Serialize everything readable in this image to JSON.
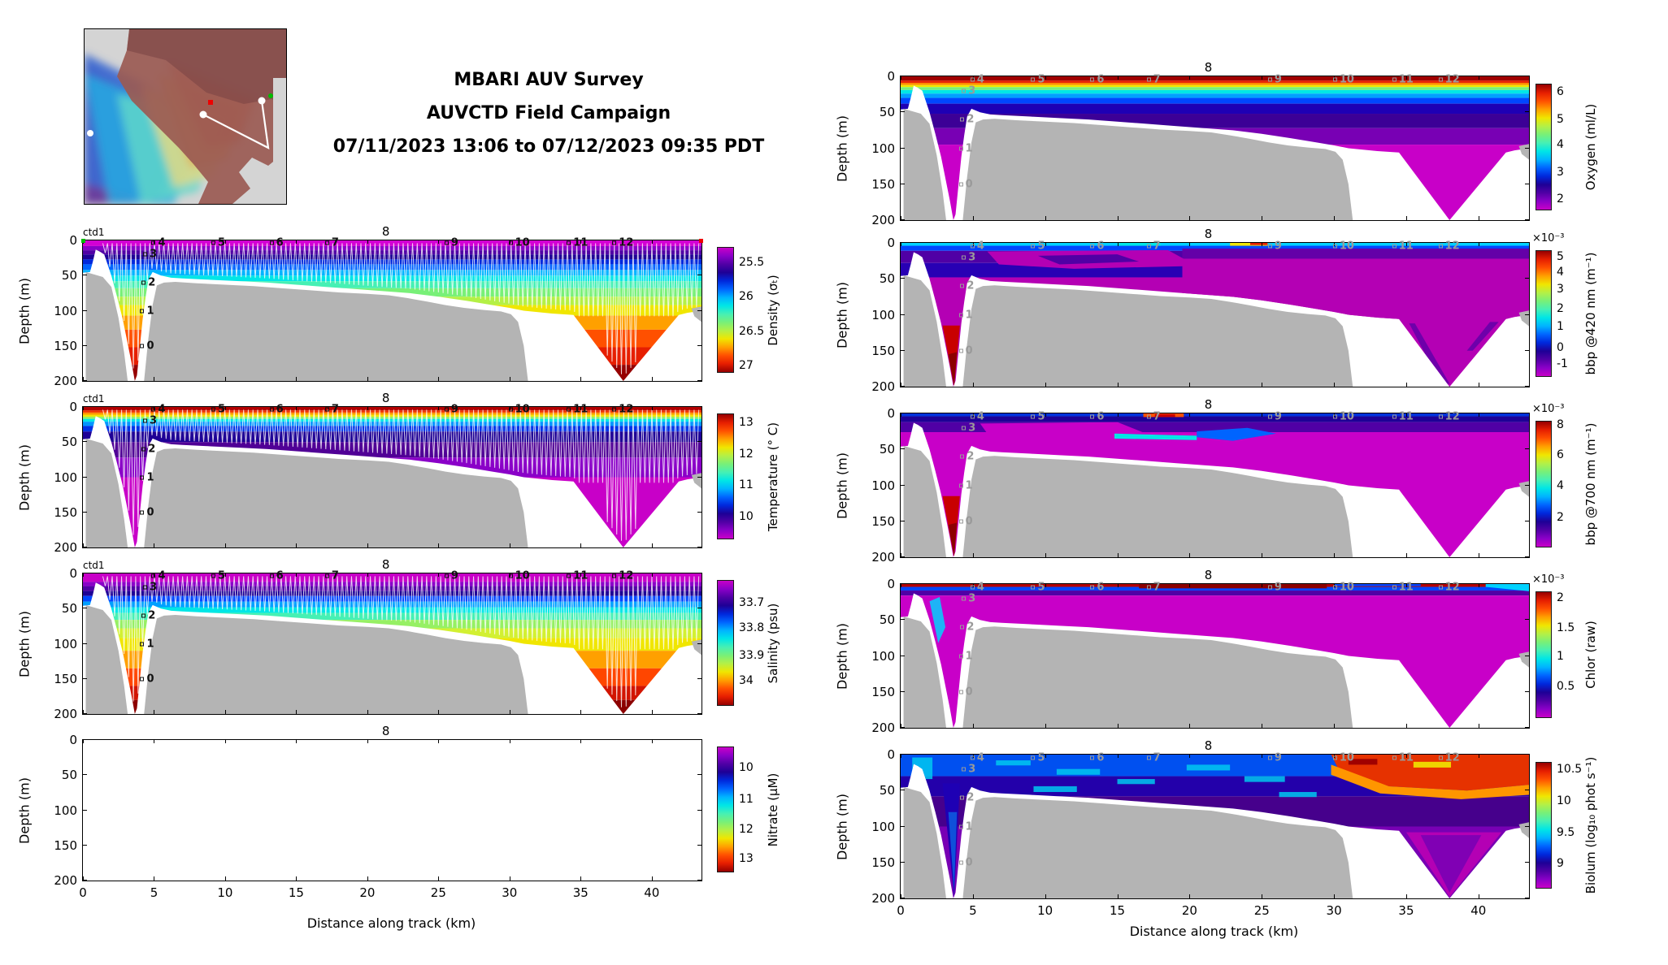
{
  "title": {
    "line1": "MBARI AUV Survey",
    "line2": "AUVCTD Field Campaign",
    "line3": "07/11/2023 13:06 to 07/12/2023 09:35 PDT"
  },
  "map_inset": {
    "description": "shaded bathymetric overview map of survey area with AUV track",
    "track_color": "#ffffff",
    "waypoint_dot_color": "#ffffff",
    "start_marker_color": "#ff0000",
    "end_marker_color": "#00bb00"
  },
  "colors": {
    "colormap_low_to_high": [
      "#c800c8",
      "#8a00c8",
      "#5000a5",
      "#1e0096",
      "#0028dc",
      "#0064ff",
      "#00b4ff",
      "#00e6e6",
      "#46f0b4",
      "#78f078",
      "#b4f046",
      "#f0e600",
      "#ffa000",
      "#ff5000",
      "#e61e00",
      "#960000"
    ],
    "seafloor_gray": "#b4b4b4",
    "background": "#ffffff",
    "track_white": "#ffffff",
    "marker_gray": "#9a9a9a",
    "marker_black": "#111111"
  },
  "chart_data": {
    "type": "heatmap",
    "subtype": "depth-section contour panels along AUV track",
    "x_axis": {
      "label": "Distance along track (km)",
      "ticks": [
        0,
        5,
        10,
        15,
        20,
        25,
        30,
        35,
        40
      ],
      "range_km": [
        0,
        43.5
      ]
    },
    "y_axis": {
      "label": "Depth (m)",
      "ticks": [
        0,
        50,
        100,
        150,
        200
      ],
      "range_m": [
        0,
        200
      ],
      "direction": "down"
    },
    "top_axis_label": {
      "text": "8",
      "km": 21.3
    },
    "ctd_label": "ctd1",
    "waypoint_markers": [
      {
        "label": "0",
        "km": 4.2,
        "depth_m": 150
      },
      {
        "label": "1",
        "km": 4.2,
        "depth_m": 100
      },
      {
        "label": "2",
        "km": 4.3,
        "depth_m": 60
      },
      {
        "label": "3",
        "km": 4.4,
        "depth_m": 20
      },
      {
        "label": "4",
        "km": 5.0,
        "depth_m": 4
      },
      {
        "label": "5",
        "km": 9.2,
        "depth_m": 4
      },
      {
        "label": "6",
        "km": 13.3,
        "depth_m": 4
      },
      {
        "label": "7",
        "km": 17.2,
        "depth_m": 4
      },
      {
        "label": "9",
        "km": 25.6,
        "depth_m": 4
      },
      {
        "label": "10",
        "km": 30.1,
        "depth_m": 4
      },
      {
        "label": "11",
        "km": 34.2,
        "depth_m": 4
      },
      {
        "label": "12",
        "km": 37.4,
        "depth_m": 4
      }
    ],
    "features": {
      "canyon_axis_km": 3.7,
      "canyon_max_depth_m": 200,
      "offshore_dive_apex_km": 38,
      "offshore_dive_depth_m": 200,
      "shelf_seafloor_mask_km": [
        5,
        31.5
      ],
      "empty_panel": "Nitrate (no data plotted)"
    },
    "panels": [
      {
        "id": "density",
        "field": "density",
        "colorbar_label": "Density (σₜ)",
        "multiplier": "",
        "scale_direction": "low-at-top",
        "colorbar_ticks": [
          {
            "v": "25.5",
            "pos": 0.12
          },
          {
            "v": "26",
            "pos": 0.395
          },
          {
            "v": "26.5",
            "pos": 0.67
          },
          {
            "v": "27",
            "pos": 0.945
          }
        ],
        "marker_style": "black",
        "ctd1": true,
        "track_overlay": true,
        "show_x_tick_labels": false
      },
      {
        "id": "temperature",
        "field": "temperature",
        "colorbar_label": "Temperature (° C)",
        "multiplier": "",
        "scale_direction": "high-at-top",
        "colorbar_ticks": [
          {
            "v": "13",
            "pos": 0.07
          },
          {
            "v": "12",
            "pos": 0.32
          },
          {
            "v": "11",
            "pos": 0.57
          },
          {
            "v": "10",
            "pos": 0.82
          }
        ],
        "marker_style": "black",
        "ctd1": true,
        "track_overlay": true,
        "show_x_tick_labels": false
      },
      {
        "id": "salinity",
        "field": "salinity",
        "colorbar_label": "Salinity (psu)",
        "multiplier": "",
        "scale_direction": "low-at-top",
        "colorbar_ticks": [
          {
            "v": "33.7",
            "pos": 0.18
          },
          {
            "v": "33.8",
            "pos": 0.38
          },
          {
            "v": "33.9",
            "pos": 0.6
          },
          {
            "v": "34",
            "pos": 0.8
          }
        ],
        "marker_style": "black",
        "ctd1": true,
        "track_overlay": true,
        "show_x_tick_labels": false
      },
      {
        "id": "nitrate",
        "field": "nitrate",
        "colorbar_label": "Nitrate (μM)",
        "multiplier": "",
        "scale_direction": "low-at-top",
        "colorbar_ticks": [
          {
            "v": "10",
            "pos": 0.17
          },
          {
            "v": "11",
            "pos": 0.42
          },
          {
            "v": "12",
            "pos": 0.66
          },
          {
            "v": "13",
            "pos": 0.89
          }
        ],
        "marker_style": "none",
        "ctd1": false,
        "track_overlay": false,
        "show_x_tick_labels": true
      },
      {
        "id": "oxygen",
        "field": "oxygen",
        "colorbar_label": "Oxygen (ml/L)",
        "multiplier": "",
        "scale_direction": "high-at-top",
        "colorbar_ticks": [
          {
            "v": "6",
            "pos": 0.065
          },
          {
            "v": "5",
            "pos": 0.28
          },
          {
            "v": "4",
            "pos": 0.48
          },
          {
            "v": "3",
            "pos": 0.7
          },
          {
            "v": "2",
            "pos": 0.91
          }
        ],
        "marker_style": "gray",
        "ctd1": false,
        "track_overlay": false,
        "show_x_tick_labels": false
      },
      {
        "id": "bbp420",
        "field": "bbp420",
        "colorbar_label": "bbp @420 nm (m⁻¹)",
        "multiplier": "×10⁻³",
        "scale_direction": "high-at-top",
        "colorbar_ticks": [
          {
            "v": "5",
            "pos": 0.05
          },
          {
            "v": "4",
            "pos": 0.17
          },
          {
            "v": "3",
            "pos": 0.31
          },
          {
            "v": "2",
            "pos": 0.46
          },
          {
            "v": "1",
            "pos": 0.6
          },
          {
            "v": "0",
            "pos": 0.77
          },
          {
            "v": "-1",
            "pos": 0.9
          }
        ],
        "marker_style": "gray",
        "ctd1": false,
        "track_overlay": false,
        "show_x_tick_labels": false
      },
      {
        "id": "bbp700",
        "field": "bbp700",
        "colorbar_label": "bbp @700 nm (m⁻¹)",
        "multiplier": "×10⁻³",
        "scale_direction": "high-at-top",
        "colorbar_ticks": [
          {
            "v": "8",
            "pos": 0.03
          },
          {
            "v": "6",
            "pos": 0.27
          },
          {
            "v": "4",
            "pos": 0.51
          },
          {
            "v": "2",
            "pos": 0.76
          }
        ],
        "marker_style": "gray",
        "ctd1": false,
        "track_overlay": false,
        "show_x_tick_labels": false
      },
      {
        "id": "chlor",
        "field": "chlor",
        "colorbar_label": "Chlor (raw)",
        "multiplier": "×10⁻³",
        "scale_direction": "high-at-top",
        "colorbar_ticks": [
          {
            "v": "2",
            "pos": 0.05
          },
          {
            "v": "1.5",
            "pos": 0.29
          },
          {
            "v": "1",
            "pos": 0.51
          },
          {
            "v": "0.5",
            "pos": 0.75
          }
        ],
        "marker_style": "gray",
        "ctd1": false,
        "track_overlay": false,
        "show_x_tick_labels": false
      },
      {
        "id": "biolum",
        "field": "biolum",
        "colorbar_label": "Biolum (log₁₀ phot s⁻¹)",
        "multiplier": "",
        "scale_direction": "high-at-top",
        "colorbar_ticks": [
          {
            "v": "10.5",
            "pos": 0.06
          },
          {
            "v": "10",
            "pos": 0.31
          },
          {
            "v": "9.5",
            "pos": 0.56
          },
          {
            "v": "9",
            "pos": 0.8
          }
        ],
        "marker_style": "gray",
        "ctd1": false,
        "track_overlay": false,
        "show_x_tick_labels": true
      }
    ]
  }
}
